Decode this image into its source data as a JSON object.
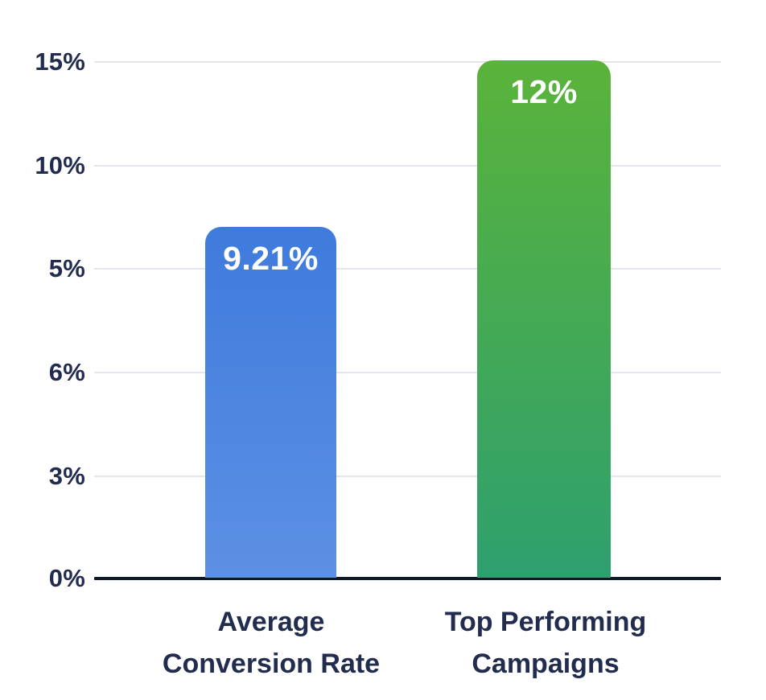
{
  "chart_data": {
    "type": "bar",
    "categories": [
      "Average Conversion Rate",
      "Top Performing Campaigns"
    ],
    "values": [
      9.21,
      12
    ],
    "yticks": [
      "15%",
      "10%",
      "5%",
      "6%",
      "3%",
      "0%"
    ],
    "xlabel": "",
    "ylabel": "",
    "grid": true,
    "legend": false,
    "bars": [
      {
        "category": "Average Conversion Rate",
        "category_lines": [
          "Average",
          "Conversion Rate"
        ],
        "value": 9.21,
        "label": "9.21%",
        "color_top": "#3f7bdc",
        "color_bottom": "#5c90e4",
        "height_frac": 0.68
      },
      {
        "category": "Top Performing Campaigns",
        "category_lines": [
          "Top Performing",
          "Campaigns"
        ],
        "value": 12,
        "label": "12%",
        "color_top": "#5ab33a",
        "color_bottom": "#2ea06e",
        "height_frac": 1.003
      }
    ],
    "colors": {
      "background": "#ffffff",
      "grid_line": "#e4e6ec",
      "axis_line": "#10162a",
      "tick_text": "#212c4e",
      "category_text": "#212c4e",
      "bar_label_text": "#ffffff"
    }
  }
}
